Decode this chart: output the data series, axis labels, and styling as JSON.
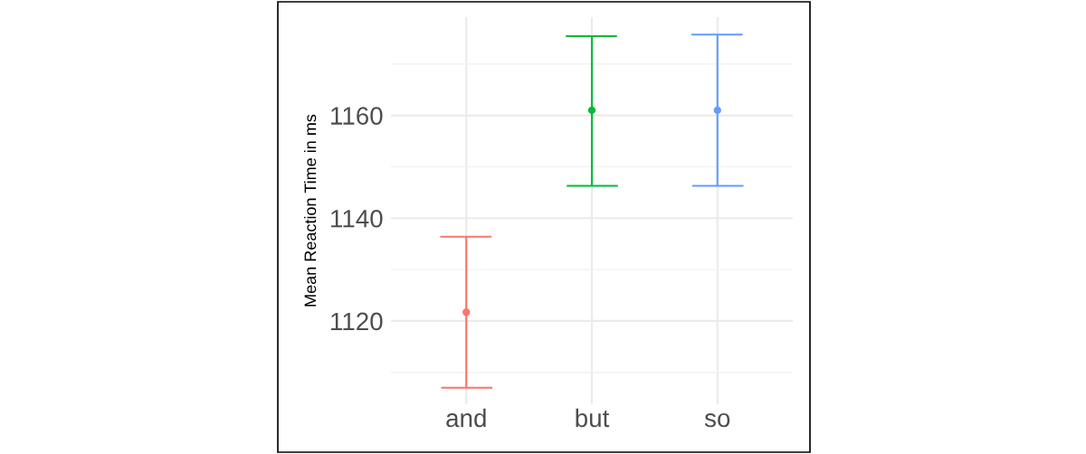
{
  "chart_data": {
    "type": "scatter",
    "ylabel": "Mean Reaction Time in ms",
    "categories": [
      "and",
      "but",
      "so"
    ],
    "values": [
      1121.7,
      1161.0,
      1161.0
    ],
    "colors": [
      "#f8766d",
      "#00ba38",
      "#619cff"
    ],
    "errors": [
      [
        1107.0,
        1136.4
      ],
      [
        1146.3,
        1175.4
      ],
      [
        1146.3,
        1175.7
      ]
    ],
    "ylim": [
      1103.8,
      1179.1
    ],
    "yticks": [
      {
        "value": 1110,
        "label": null
      },
      1120,
      {
        "value": 1130,
        "label": null
      },
      1140,
      {
        "value": 1150,
        "label": null
      },
      1160,
      {
        "value": 1170,
        "label": null
      }
    ],
    "grid": true,
    "legend": false,
    "marker": "circle"
  }
}
